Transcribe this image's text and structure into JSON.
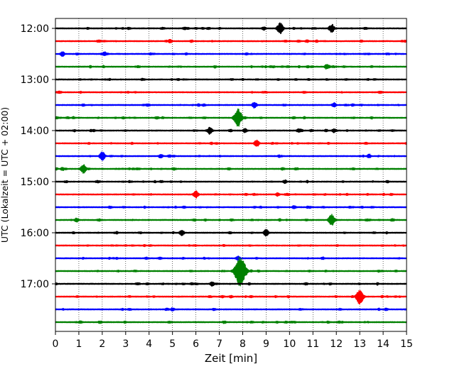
{
  "chart_data": {
    "type": "line",
    "title": "",
    "xlabel": "Zeit  [min]",
    "ylabel": "UTC (Lokalzeit = UTC + 02:00)",
    "xlim": [
      0,
      15
    ],
    "x_ticks": [
      "0",
      "1",
      "2",
      "3",
      "4",
      "5",
      "6",
      "7",
      "8",
      "9",
      "10",
      "11",
      "12",
      "13",
      "14",
      "15"
    ],
    "y_ticks": [
      {
        "label": "12:00",
        "trace": 0
      },
      {
        "label": "13:00",
        "trace": 4
      },
      {
        "label": "14:00",
        "trace": 8
      },
      {
        "label": "15:00",
        "trace": 12
      },
      {
        "label": "16:00",
        "trace": 16
      },
      {
        "label": "17:00",
        "trace": 20
      }
    ],
    "trace_interval_min": 15,
    "grid": "vertical dotted at each minute",
    "color_cycle": [
      "#000000",
      "#ff0000",
      "#0000ff",
      "#008000"
    ],
    "traces": [
      {
        "start": "12:00",
        "color": "#000000",
        "events": [
          {
            "t": 9.6,
            "amp": 0.9
          },
          {
            "t": 11.8,
            "amp": 0.7
          },
          {
            "t": 8.9,
            "amp": 0.3
          }
        ]
      },
      {
        "start": "12:15",
        "color": "#ff0000",
        "events": [
          {
            "t": 4.9,
            "amp": 0.3
          }
        ]
      },
      {
        "start": "12:30",
        "color": "#0000ff",
        "events": [
          {
            "t": 0.3,
            "amp": 0.4
          },
          {
            "t": 2.1,
            "amp": 0.35
          }
        ]
      },
      {
        "start": "12:45",
        "color": "#008000",
        "events": [
          {
            "t": 11.6,
            "amp": 0.45
          },
          {
            "t": 9.2,
            "amp": 0.2
          }
        ]
      },
      {
        "start": "13:00",
        "color": "#000000",
        "events": []
      },
      {
        "start": "13:15",
        "color": "#ff0000",
        "events": []
      },
      {
        "start": "13:30",
        "color": "#0000ff",
        "events": [
          {
            "t": 8.5,
            "amp": 0.5
          },
          {
            "t": 11.9,
            "amp": 0.4
          }
        ]
      },
      {
        "start": "13:45",
        "color": "#008000",
        "events": [
          {
            "t": 7.8,
            "amp": 1.4
          }
        ]
      },
      {
        "start": "14:00",
        "color": "#000000",
        "events": [
          {
            "t": 6.6,
            "amp": 0.6
          },
          {
            "t": 8.1,
            "amp": 0.35
          },
          {
            "t": 10.4,
            "amp": 0.35
          },
          {
            "t": 11.9,
            "amp": 0.35
          }
        ]
      },
      {
        "start": "14:15",
        "color": "#ff0000",
        "events": [
          {
            "t": 8.6,
            "amp": 0.55
          }
        ]
      },
      {
        "start": "14:30",
        "color": "#0000ff",
        "events": [
          {
            "t": 2.0,
            "amp": 0.7
          },
          {
            "t": 4.5,
            "amp": 0.35
          },
          {
            "t": 13.4,
            "amp": 0.35
          }
        ]
      },
      {
        "start": "14:45",
        "color": "#008000",
        "events": [
          {
            "t": 1.2,
            "amp": 0.75
          },
          {
            "t": 0.3,
            "amp": 0.3
          }
        ]
      },
      {
        "start": "15:00",
        "color": "#000000",
        "events": [
          {
            "t": 9.8,
            "amp": 0.3
          }
        ]
      },
      {
        "start": "15:15",
        "color": "#ff0000",
        "events": [
          {
            "t": 6.0,
            "amp": 0.6
          },
          {
            "t": 9.5,
            "amp": 0.3
          }
        ]
      },
      {
        "start": "15:30",
        "color": "#0000ff",
        "events": [
          {
            "t": 10.2,
            "amp": 0.3
          }
        ]
      },
      {
        "start": "15:45",
        "color": "#008000",
        "events": [
          {
            "t": 11.8,
            "amp": 0.9
          },
          {
            "t": 0.9,
            "amp": 0.35
          }
        ]
      },
      {
        "start": "16:00",
        "color": "#000000",
        "events": [
          {
            "t": 5.4,
            "amp": 0.5
          },
          {
            "t": 9.0,
            "amp": 0.55
          }
        ]
      },
      {
        "start": "16:15",
        "color": "#ff0000",
        "events": []
      },
      {
        "start": "16:30",
        "color": "#0000ff",
        "events": [
          {
            "t": 7.8,
            "amp": 0.35
          }
        ]
      },
      {
        "start": "16:45",
        "color": "#008000",
        "events": [
          {
            "t": 7.9,
            "amp": 2.4
          }
        ]
      },
      {
        "start": "17:00",
        "color": "#000000",
        "events": [
          {
            "t": 6.7,
            "amp": 0.4
          }
        ]
      },
      {
        "start": "17:15",
        "color": "#ff0000",
        "events": [
          {
            "t": 13.0,
            "amp": 1.2
          }
        ]
      },
      {
        "start": "17:30",
        "color": "#0000ff",
        "events": [
          {
            "t": 5.0,
            "amp": 0.3
          }
        ]
      },
      {
        "start": "17:45",
        "color": "#008000",
        "events": []
      }
    ]
  }
}
